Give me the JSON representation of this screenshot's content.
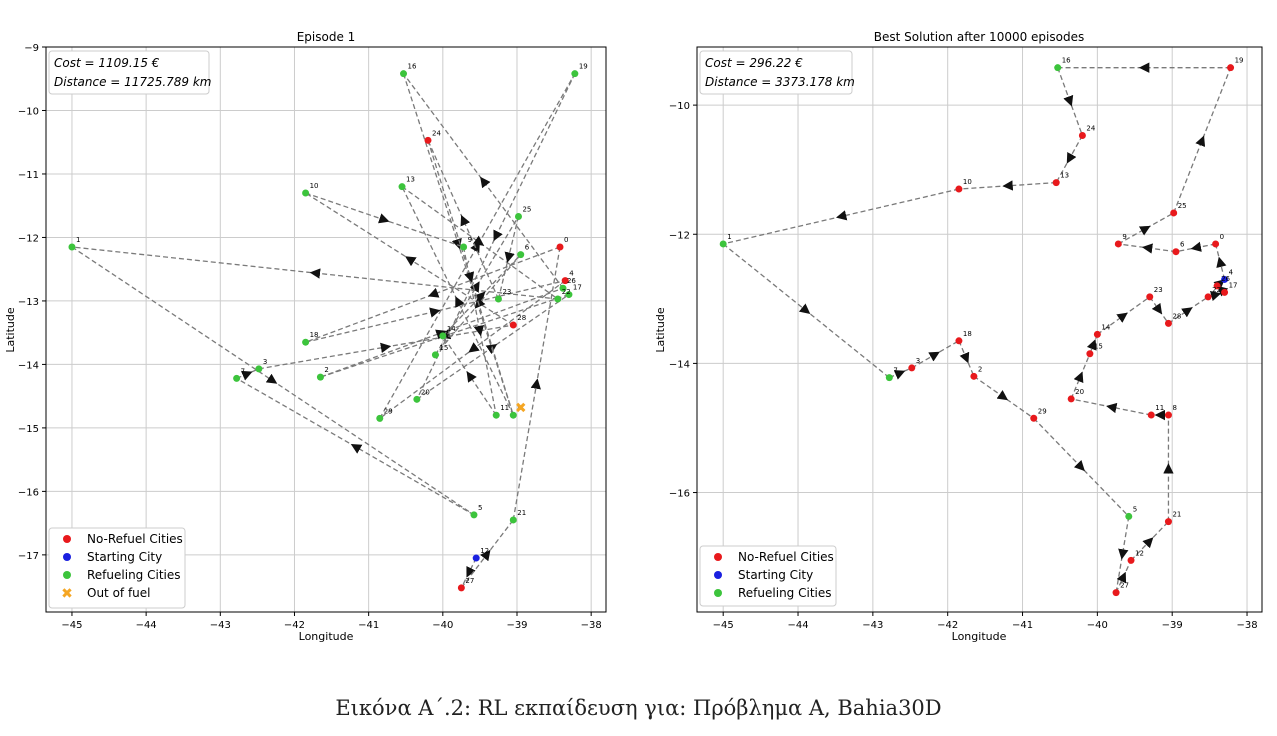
{
  "caption": "Εικόνα Α΄.2: RL εκπαίδευση για: Πρόβλημα Α, Bahia30D",
  "colors": {
    "no_refuel": "#e8191c",
    "start": "#1a20e0",
    "refuel": "#3cc43c",
    "out_of_fuel": "#f5a623",
    "route": "#7a7a7a",
    "grid": "#cccccc"
  },
  "chart_data": [
    {
      "type": "scatter",
      "title": "Episode 1",
      "xlabel": "Longitude",
      "ylabel": "Latitude",
      "xlim": [
        -45.35,
        -37.8
      ],
      "ylim": [
        -17.9,
        -9.0
      ],
      "xticks": [
        -45,
        -44,
        -43,
        -42,
        -41,
        -40,
        -39,
        -38
      ],
      "yticks": [
        -9,
        -10,
        -11,
        -12,
        -13,
        -14,
        -15,
        -16,
        -17
      ],
      "grid": true,
      "legend_position": "lower-left",
      "legend": [
        "No-Refuel Cities",
        "Starting City",
        "Refueling Cities",
        "Out of fuel"
      ],
      "annotations": [
        "Cost = 1109.15 €",
        "Distance = 11725.789 km"
      ],
      "cities": [
        {
          "id": "0",
          "x": -38.42,
          "y": -12.15,
          "kind": "no_refuel"
        },
        {
          "id": "1",
          "x": -45.0,
          "y": -12.15,
          "kind": "refuel"
        },
        {
          "id": "2",
          "x": -41.65,
          "y": -14.2,
          "kind": "refuel"
        },
        {
          "id": "3",
          "x": -42.48,
          "y": -14.07,
          "kind": "refuel"
        },
        {
          "id": "4",
          "x": -38.35,
          "y": -12.68,
          "kind": "no_refuel"
        },
        {
          "id": "5",
          "x": -39.58,
          "y": -16.37,
          "kind": "refuel"
        },
        {
          "id": "6",
          "x": -38.95,
          "y": -12.27,
          "kind": "refuel"
        },
        {
          "id": "7",
          "x": -42.78,
          "y": -14.22,
          "kind": "refuel"
        },
        {
          "id": "8",
          "x": -39.05,
          "y": -14.8,
          "kind": "refuel"
        },
        {
          "id": "9",
          "x": -39.72,
          "y": -12.15,
          "kind": "refuel"
        },
        {
          "id": "10",
          "x": -41.85,
          "y": -11.3,
          "kind": "refuel"
        },
        {
          "id": "11",
          "x": -39.28,
          "y": -14.8,
          "kind": "refuel"
        },
        {
          "id": "12",
          "x": -39.55,
          "y": -17.05,
          "kind": "start"
        },
        {
          "id": "13",
          "x": -40.55,
          "y": -11.2,
          "kind": "refuel"
        },
        {
          "id": "14",
          "x": -40.0,
          "y": -13.55,
          "kind": "refuel"
        },
        {
          "id": "15",
          "x": -40.1,
          "y": -13.85,
          "kind": "refuel"
        },
        {
          "id": "16",
          "x": -40.53,
          "y": -9.42,
          "kind": "refuel"
        },
        {
          "id": "17",
          "x": -38.3,
          "y": -12.9,
          "kind": "refuel"
        },
        {
          "id": "18",
          "x": -41.85,
          "y": -13.65,
          "kind": "refuel"
        },
        {
          "id": "19",
          "x": -38.22,
          "y": -9.42,
          "kind": "refuel"
        },
        {
          "id": "20",
          "x": -40.35,
          "y": -14.55,
          "kind": "refuel"
        },
        {
          "id": "21",
          "x": -39.05,
          "y": -16.45,
          "kind": "refuel"
        },
        {
          "id": "22",
          "x": -38.45,
          "y": -12.97,
          "kind": "refuel"
        },
        {
          "id": "23",
          "x": -39.25,
          "y": -12.97,
          "kind": "refuel"
        },
        {
          "id": "24",
          "x": -40.2,
          "y": -10.47,
          "kind": "no_refuel"
        },
        {
          "id": "25",
          "x": -38.98,
          "y": -11.67,
          "kind": "refuel"
        },
        {
          "id": "26",
          "x": -38.38,
          "y": -12.8,
          "kind": "refuel"
        },
        {
          "id": "27",
          "x": -39.75,
          "y": -17.52,
          "kind": "no_refuel"
        },
        {
          "id": "28",
          "x": -39.05,
          "y": -13.38,
          "kind": "no_refuel"
        },
        {
          "id": "29",
          "x": -40.85,
          "y": -14.85,
          "kind": "refuel"
        }
      ],
      "out_of_fuel": {
        "x": -38.95,
        "y": -14.68
      },
      "route": [
        "12",
        "27",
        "21",
        "0",
        "18",
        "4",
        "29",
        "19",
        "20",
        "17",
        "2",
        "26",
        "16",
        "8",
        "13",
        "22",
        "1",
        "5",
        "7",
        "3",
        "28",
        "10",
        "9",
        "11",
        "14",
        "6",
        "15",
        "25",
        "23",
        "24",
        "8"
      ]
    },
    {
      "type": "scatter",
      "title": "Best Solution after 10000 episodes",
      "xlabel": "Longitude",
      "ylabel": "Latitude",
      "xlim": [
        -45.35,
        -37.8
      ],
      "ylim": [
        -17.85,
        -9.1
      ],
      "xticks": [
        -45,
        -44,
        -43,
        -42,
        -41,
        -40,
        -39,
        -38
      ],
      "yticks": [
        -10,
        -12,
        -14,
        -16
      ],
      "grid": true,
      "legend_position": "lower-left",
      "legend": [
        "No-Refuel Cities",
        "Starting City",
        "Refueling Cities"
      ],
      "annotations": [
        "Cost = 296.22 €",
        "Distance = 3373.178 km"
      ],
      "cities": [
        {
          "id": "0",
          "x": -38.42,
          "y": -12.15,
          "kind": "no_refuel"
        },
        {
          "id": "1",
          "x": -45.0,
          "y": -12.15,
          "kind": "refuel"
        },
        {
          "id": "2",
          "x": -41.65,
          "y": -14.2,
          "kind": "no_refuel"
        },
        {
          "id": "3",
          "x": -42.48,
          "y": -14.07,
          "kind": "no_refuel"
        },
        {
          "id": "4",
          "x": -38.3,
          "y": -12.7,
          "kind": "start"
        },
        {
          "id": "5",
          "x": -39.58,
          "y": -16.37,
          "kind": "refuel"
        },
        {
          "id": "6",
          "x": -38.95,
          "y": -12.27,
          "kind": "no_refuel"
        },
        {
          "id": "7",
          "x": -42.78,
          "y": -14.22,
          "kind": "refuel"
        },
        {
          "id": "8",
          "x": -39.05,
          "y": -14.8,
          "kind": "no_refuel"
        },
        {
          "id": "9",
          "x": -39.72,
          "y": -12.15,
          "kind": "no_refuel"
        },
        {
          "id": "10",
          "x": -41.85,
          "y": -11.3,
          "kind": "no_refuel"
        },
        {
          "id": "11",
          "x": -39.28,
          "y": -14.8,
          "kind": "no_refuel"
        },
        {
          "id": "12",
          "x": -39.55,
          "y": -17.05,
          "kind": "no_refuel"
        },
        {
          "id": "13",
          "x": -40.55,
          "y": -11.2,
          "kind": "no_refuel"
        },
        {
          "id": "14",
          "x": -40.0,
          "y": -13.55,
          "kind": "no_refuel"
        },
        {
          "id": "15",
          "x": -40.1,
          "y": -13.85,
          "kind": "no_refuel"
        },
        {
          "id": "16",
          "x": -40.53,
          "y": -9.42,
          "kind": "refuel"
        },
        {
          "id": "17",
          "x": -38.3,
          "y": -12.9,
          "kind": "no_refuel"
        },
        {
          "id": "18",
          "x": -41.85,
          "y": -13.65,
          "kind": "no_refuel"
        },
        {
          "id": "19",
          "x": -38.22,
          "y": -9.42,
          "kind": "no_refuel"
        },
        {
          "id": "20",
          "x": -40.35,
          "y": -14.55,
          "kind": "no_refuel"
        },
        {
          "id": "21",
          "x": -39.05,
          "y": -16.45,
          "kind": "no_refuel"
        },
        {
          "id": "22",
          "x": -38.52,
          "y": -12.97,
          "kind": "no_refuel"
        },
        {
          "id": "23",
          "x": -39.3,
          "y": -12.97,
          "kind": "no_refuel"
        },
        {
          "id": "24",
          "x": -40.2,
          "y": -10.47,
          "kind": "no_refuel"
        },
        {
          "id": "25",
          "x": -38.98,
          "y": -11.67,
          "kind": "no_refuel"
        },
        {
          "id": "26",
          "x": -38.4,
          "y": -12.8,
          "kind": "no_refuel"
        },
        {
          "id": "27",
          "x": -39.75,
          "y": -17.55,
          "kind": "no_refuel"
        },
        {
          "id": "28",
          "x": -39.05,
          "y": -13.38,
          "kind": "no_refuel"
        },
        {
          "id": "29",
          "x": -40.85,
          "y": -14.85,
          "kind": "no_refuel"
        }
      ],
      "route": [
        "4",
        "0",
        "6",
        "9",
        "25",
        "19",
        "16",
        "24",
        "13",
        "10",
        "1",
        "7",
        "3",
        "18",
        "2",
        "29",
        "5",
        "27",
        "12",
        "21",
        "8",
        "11",
        "20",
        "15",
        "14",
        "23",
        "28",
        "22",
        "17",
        "26",
        "4"
      ]
    }
  ]
}
